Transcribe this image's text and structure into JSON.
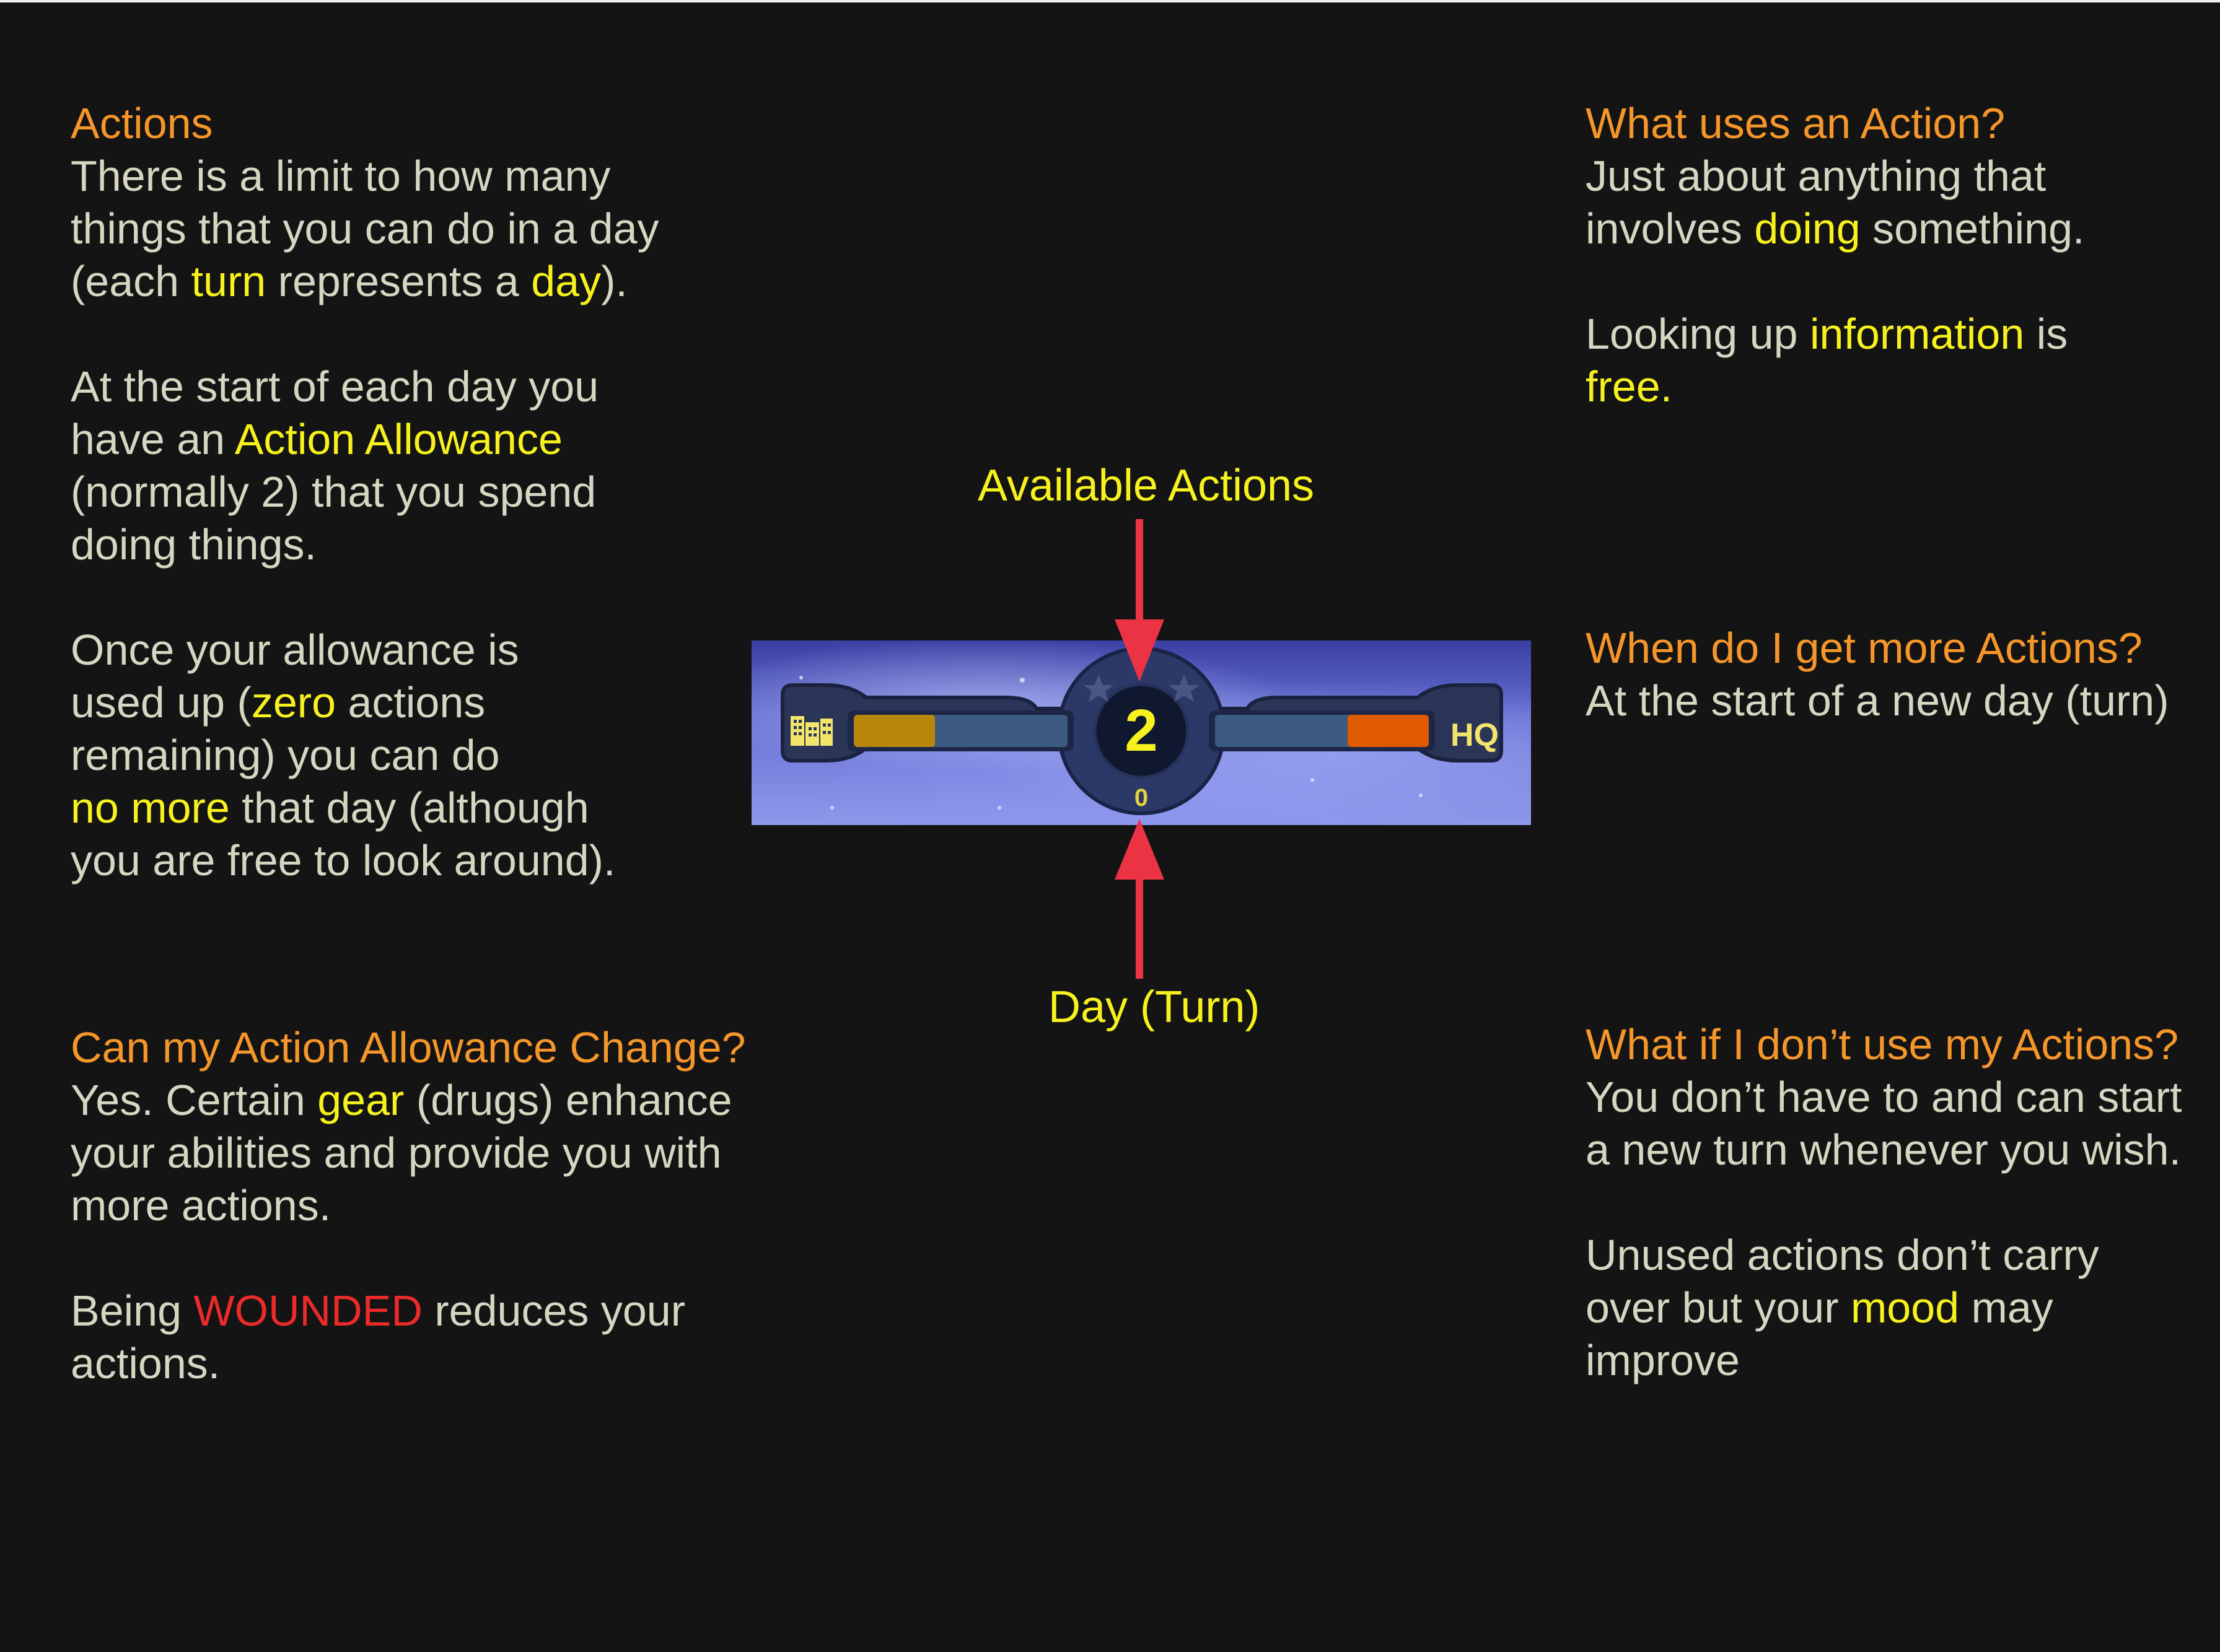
{
  "left_top": {
    "heading": "Actions",
    "p1": {
      "a": "There is a limit to how many",
      "b": "things that you can do in a day",
      "c_pre": "(each ",
      "c_hl1": "turn",
      "c_mid": " represents a ",
      "c_hl2": "day",
      "c_post": ")."
    },
    "p2": {
      "a": "At the start of each day you",
      "b_pre": "have an ",
      "b_hl": "Action Allowance",
      "c": "(normally 2) that you spend",
      "d": "doing things."
    },
    "p3": {
      "a": "Once your allowance is",
      "b_pre": "used up (",
      "b_hl": "zero",
      "b_post": " actions",
      "c": "remaining) you can do",
      "d_hl": "no more",
      "d_post": " that day (although",
      "e": "you are free to look around)."
    }
  },
  "left_bottom": {
    "heading": "Can my Action Allowance Change?",
    "p1": {
      "a_pre": "Yes. Certain ",
      "a_hl": "gear",
      "a_post": " (drugs) enhance",
      "b": "your abilities and provide you with",
      "c": "more actions."
    },
    "p2": {
      "a_pre": "Being ",
      "a_warn": "WOUNDED",
      "a_post": " reduces your",
      "b": "actions."
    }
  },
  "right_top": {
    "heading": "What uses an Action?",
    "p1": {
      "a": "Just about anything that",
      "b_pre": "involves ",
      "b_hl": "doing",
      "b_post": " something."
    },
    "p2": {
      "a_pre": "Looking up ",
      "a_hl": "information",
      "a_post": " is",
      "b_hl": "free."
    }
  },
  "right_mid": {
    "heading": "When do I get more Actions?",
    "a": "At the start of a new day (turn)"
  },
  "right_bottom": {
    "heading": "What if I don’t use my Actions?",
    "p1": {
      "a": "You don’t have to and can start",
      "b": "a new turn whenever you wish."
    },
    "p2": {
      "a": "Unused actions don’t carry",
      "b_pre": "over but your ",
      "b_hl": "mood",
      "b_post": " may",
      "c": "improve"
    }
  },
  "hud": {
    "available_actions": "2",
    "day": "0",
    "hq_label": "HQ",
    "left_icon": "city-icon",
    "left_bar_fill": 0.38,
    "right_bar_fill": 0.38,
    "left_fill_color": "#b8860b",
    "right_fill_color": "#e05a00"
  },
  "labels": {
    "available_actions": "Available Actions",
    "day_turn": "Day (Turn)"
  },
  "colors": {
    "background": "#141414",
    "body_text": "#d6d6c2",
    "heading": "#f5962a",
    "highlight": "#f7f21e",
    "warning": "#ec2a2a",
    "arrow": "#ec3344"
  }
}
